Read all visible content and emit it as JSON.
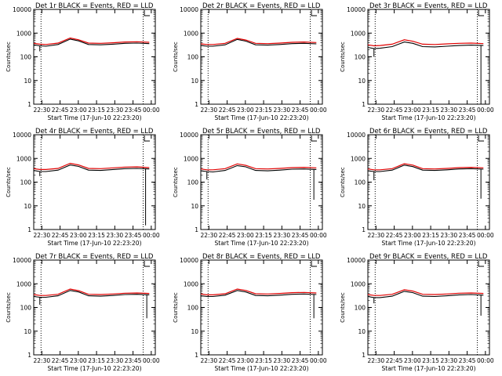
{
  "colors": {
    "events": "#000000",
    "lld": "#e00000",
    "axis": "#000000",
    "background": "#ffffff"
  },
  "shared": {
    "xlabel": "Start Time (17-Jun-10 22:23:20)",
    "ylabel": "Counts/sec",
    "xtick_labels": [
      "22:30",
      "22:45",
      "23:00",
      "23:15",
      "23:30",
      "23:45",
      "00:00"
    ],
    "ytick_labels": [
      "1",
      "10",
      "100",
      "1000",
      "10000"
    ]
  },
  "chart_data": [
    {
      "type": "line",
      "title": "Det 1r BLACK = Events, RED = LLD",
      "yscale": "log",
      "xlabel": "Start Time (17-Jun-10 22:23:20)",
      "ylabel": "Counts/sec",
      "ylim": [
        1,
        10000
      ],
      "x_minutes": [
        0,
        5,
        10,
        20,
        30,
        37,
        45,
        55,
        65,
        75,
        85,
        95
      ],
      "series": [
        {
          "name": "Events",
          "color": "#000000",
          "values": [
            320,
            290,
            280,
            330,
            560,
            470,
            330,
            320,
            340,
            370,
            380,
            360
          ],
          "dips": [
            {
              "x_minute": 5,
              "value": 170
            }
          ]
        },
        {
          "name": "LLD",
          "color": "#e00000",
          "values": [
            370,
            340,
            330,
            380,
            620,
            520,
            380,
            370,
            390,
            420,
            430,
            410
          ]
        }
      ],
      "markers": [
        {
          "x_minute": 6
        },
        {
          "x_minute": 90
        }
      ]
    },
    {
      "type": "line",
      "title": "Det 2r BLACK = Events, RED = LLD",
      "yscale": "log",
      "xlabel": "Start Time (17-Jun-10 22:23:20)",
      "ylabel": "Counts/sec",
      "ylim": [
        1,
        10000
      ],
      "x_minutes": [
        0,
        5,
        10,
        20,
        30,
        37,
        45,
        55,
        65,
        75,
        85,
        95
      ],
      "series": [
        {
          "name": "Events",
          "color": "#000000",
          "values": [
            300,
            280,
            280,
            320,
            540,
            460,
            320,
            310,
            330,
            360,
            370,
            350
          ],
          "dips": []
        },
        {
          "name": "LLD",
          "color": "#e00000",
          "values": [
            350,
            330,
            330,
            370,
            600,
            510,
            370,
            360,
            380,
            410,
            420,
            400
          ]
        }
      ],
      "markers": [
        {
          "x_minute": 6
        },
        {
          "x_minute": 90
        }
      ]
    },
    {
      "type": "line",
      "title": "Det 3r BLACK = Events, RED = LLD",
      "yscale": "log",
      "xlabel": "Start Time (17-Jun-10 22:23:20)",
      "ylabel": "Counts/sec",
      "ylim": [
        1,
        10000
      ],
      "x_minutes": [
        0,
        5,
        10,
        20,
        30,
        37,
        45,
        55,
        65,
        75,
        85,
        95
      ],
      "series": [
        {
          "name": "Events",
          "color": "#000000",
          "values": [
            250,
            220,
            230,
            270,
            420,
            370,
            270,
            260,
            280,
            300,
            310,
            300
          ],
          "dips": [
            {
              "x_minute": 5,
              "value": 100
            },
            {
              "x_minute": 93,
              "value": 1
            }
          ]
        },
        {
          "name": "LLD",
          "color": "#e00000",
          "values": [
            320,
            290,
            300,
            340,
            520,
            450,
            340,
            330,
            350,
            370,
            380,
            360
          ]
        }
      ],
      "markers": [
        {
          "x_minute": 6
        },
        {
          "x_minute": 90
        }
      ]
    },
    {
      "type": "line",
      "title": "Det 4r BLACK = Events, RED = LLD",
      "yscale": "log",
      "xlabel": "Start Time (17-Jun-10 22:23:20)",
      "ylabel": "Counts/sec",
      "ylim": [
        1,
        10000
      ],
      "x_minutes": [
        0,
        5,
        10,
        20,
        30,
        37,
        45,
        55,
        65,
        75,
        85,
        95
      ],
      "series": [
        {
          "name": "Events",
          "color": "#000000",
          "values": [
            310,
            280,
            280,
            320,
            530,
            460,
            320,
            310,
            340,
            370,
            380,
            360
          ],
          "dips": [
            {
              "x_minute": 5,
              "value": 180
            },
            {
              "x_minute": 92,
              "value": 1.5
            }
          ]
        },
        {
          "name": "LLD",
          "color": "#e00000",
          "values": [
            370,
            340,
            340,
            380,
            620,
            530,
            380,
            370,
            400,
            430,
            440,
            410
          ]
        }
      ],
      "markers": [
        {
          "x_minute": 6
        },
        {
          "x_minute": 90
        }
      ]
    },
    {
      "type": "line",
      "title": "Det 5r BLACK = Events, RED = LLD",
      "yscale": "log",
      "xlabel": "Start Time (17-Jun-10 22:23:20)",
      "ylabel": "Counts/sec",
      "ylim": [
        1,
        10000
      ],
      "x_minutes": [
        0,
        5,
        10,
        20,
        30,
        37,
        45,
        55,
        65,
        75,
        85,
        95
      ],
      "series": [
        {
          "name": "Events",
          "color": "#000000",
          "values": [
            300,
            280,
            270,
            310,
            500,
            440,
            310,
            300,
            320,
            350,
            360,
            340
          ],
          "dips": [
            {
              "x_minute": 5,
              "value": 130
            },
            {
              "x_minute": 93,
              "value": 18
            }
          ]
        },
        {
          "name": "LLD",
          "color": "#e00000",
          "values": [
            360,
            330,
            330,
            370,
            590,
            510,
            370,
            360,
            380,
            410,
            420,
            400
          ]
        }
      ],
      "markers": [
        {
          "x_minute": 6
        },
        {
          "x_minute": 90
        }
      ]
    },
    {
      "type": "line",
      "title": "Det 6r BLACK = Events, RED = LLD",
      "yscale": "log",
      "xlabel": "Start Time (17-Jun-10 22:23:20)",
      "ylabel": "Counts/sec",
      "ylim": [
        1,
        10000
      ],
      "x_minutes": [
        0,
        5,
        10,
        20,
        30,
        37,
        45,
        55,
        65,
        75,
        85,
        95
      ],
      "series": [
        {
          "name": "Events",
          "color": "#000000",
          "values": [
            300,
            280,
            280,
            320,
            520,
            450,
            320,
            310,
            330,
            360,
            370,
            350
          ],
          "dips": [
            {
              "x_minute": 5,
              "value": 120
            },
            {
              "x_minute": 93,
              "value": 20
            }
          ]
        },
        {
          "name": "LLD",
          "color": "#e00000",
          "values": [
            360,
            330,
            330,
            370,
            600,
            520,
            370,
            360,
            380,
            410,
            420,
            400
          ]
        }
      ],
      "markers": [
        {
          "x_minute": 6
        },
        {
          "x_minute": 90
        }
      ]
    },
    {
      "type": "line",
      "title": "Det 7r BLACK = Events, RED = LLD",
      "yscale": "log",
      "xlabel": "Start Time (17-Jun-10 22:23:20)",
      "ylabel": "Counts/sec",
      "ylim": [
        1,
        10000
      ],
      "x_minutes": [
        0,
        5,
        10,
        20,
        30,
        37,
        45,
        55,
        65,
        75,
        85,
        95
      ],
      "series": [
        {
          "name": "Events",
          "color": "#000000",
          "values": [
            290,
            270,
            270,
            310,
            520,
            450,
            310,
            300,
            320,
            350,
            360,
            340
          ],
          "dips": [
            {
              "x_minute": 5,
              "value": 130
            },
            {
              "x_minute": 93,
              "value": 35
            }
          ]
        },
        {
          "name": "LLD",
          "color": "#e00000",
          "values": [
            350,
            320,
            320,
            360,
            600,
            510,
            360,
            350,
            370,
            400,
            410,
            390
          ]
        }
      ],
      "markers": [
        {
          "x_minute": 6
        },
        {
          "x_minute": 90
        }
      ]
    },
    {
      "type": "line",
      "title": "Det 8r BLACK = Events, RED = LLD",
      "yscale": "log",
      "xlabel": "Start Time (17-Jun-10 22:23:20)",
      "ylabel": "Counts/sec",
      "ylim": [
        1,
        10000
      ],
      "x_minutes": [
        0,
        5,
        10,
        20,
        30,
        37,
        45,
        55,
        65,
        75,
        85,
        95
      ],
      "series": [
        {
          "name": "Events",
          "color": "#000000",
          "values": [
            310,
            290,
            290,
            330,
            520,
            450,
            320,
            310,
            330,
            360,
            370,
            350
          ],
          "dips": [
            {
              "x_minute": 93,
              "value": 35
            }
          ]
        },
        {
          "name": "LLD",
          "color": "#e00000",
          "values": [
            370,
            340,
            340,
            380,
            600,
            520,
            380,
            370,
            390,
            420,
            430,
            410
          ]
        }
      ],
      "markers": [
        {
          "x_minute": 6
        },
        {
          "x_minute": 90
        }
      ]
    },
    {
      "type": "line",
      "title": "Det 9r BLACK = Events, RED = LLD",
      "yscale": "log",
      "xlabel": "Start Time (17-Jun-10 22:23:20)",
      "ylabel": "Counts/sec",
      "ylim": [
        1,
        10000
      ],
      "x_minutes": [
        0,
        5,
        10,
        20,
        30,
        37,
        45,
        55,
        65,
        75,
        85,
        95
      ],
      "series": [
        {
          "name": "Events",
          "color": "#000000",
          "values": [
            290,
            260,
            260,
            300,
            480,
            420,
            300,
            290,
            310,
            340,
            350,
            330
          ],
          "dips": [
            {
              "x_minute": 5,
              "value": 150
            },
            {
              "x_minute": 93,
              "value": 45
            }
          ]
        },
        {
          "name": "LLD",
          "color": "#e00000",
          "values": [
            350,
            320,
            320,
            360,
            560,
            490,
            360,
            350,
            370,
            400,
            410,
            390
          ]
        }
      ],
      "markers": [
        {
          "x_minute": 6
        },
        {
          "x_minute": 90
        }
      ]
    }
  ]
}
